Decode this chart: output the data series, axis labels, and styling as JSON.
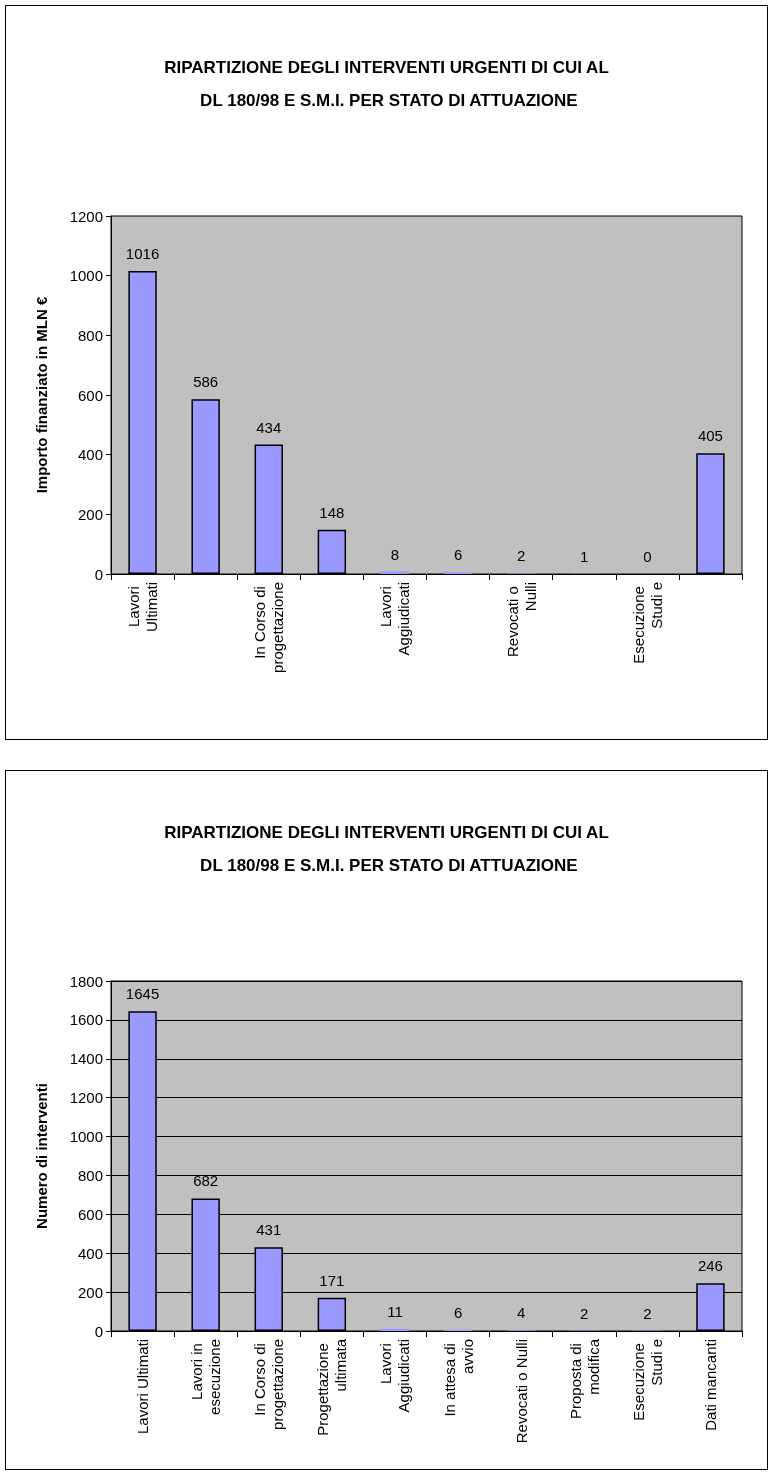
{
  "chart_data": [
    {
      "type": "bar",
      "title": "RIPARTIZIONE DEGLI INTERVENTI URGENTI DI CUI AL DL 180/98 E S.M.I. PER STATO DI ATTUAZIONE",
      "ylabel": "Importo finanziato in MLN €",
      "categories": [
        "Lavori Ultimati",
        null,
        "In Corso di progettazione",
        null,
        "Lavori Aggiudicati",
        null,
        "Revocati o Nulli",
        null,
        "Esecuzione Studi e",
        null
      ],
      "values": [
        1016,
        586,
        434,
        148,
        8,
        6,
        2,
        1,
        0,
        405
      ],
      "color": "#9999ff",
      "ylim": [
        0,
        1200
      ],
      "yticks": [
        0,
        200,
        400,
        600,
        800,
        1000,
        1200
      ],
      "grid": false,
      "data_labels": true
    },
    {
      "type": "bar",
      "title": "RIPARTIZIONE DEGLI INTERVENTI URGENTI DI CUI AL DL 180/98 E S.M.I. PER STATO DI ATTUAZIONE",
      "ylabel": "Numero di interventi",
      "categories": [
        "Lavori Ultimati",
        "Lavori in esecuzione",
        "In Corso di progettazione",
        "Progettazione ultimata",
        "Lavori Aggiudicati",
        "In attesa di avvio",
        "Revocati o Nulli",
        "Proposta di modifica",
        "Esecuzione Studi e",
        "Dati mancanti"
      ],
      "values": [
        1645,
        682,
        431,
        171,
        11,
        6,
        4,
        2,
        2,
        246
      ],
      "color": "#9999ff",
      "ylim": [
        0,
        1800
      ],
      "yticks": [
        0,
        200,
        400,
        600,
        800,
        1000,
        1200,
        1400,
        1600,
        1800
      ],
      "grid": "y",
      "data_labels": true
    }
  ]
}
